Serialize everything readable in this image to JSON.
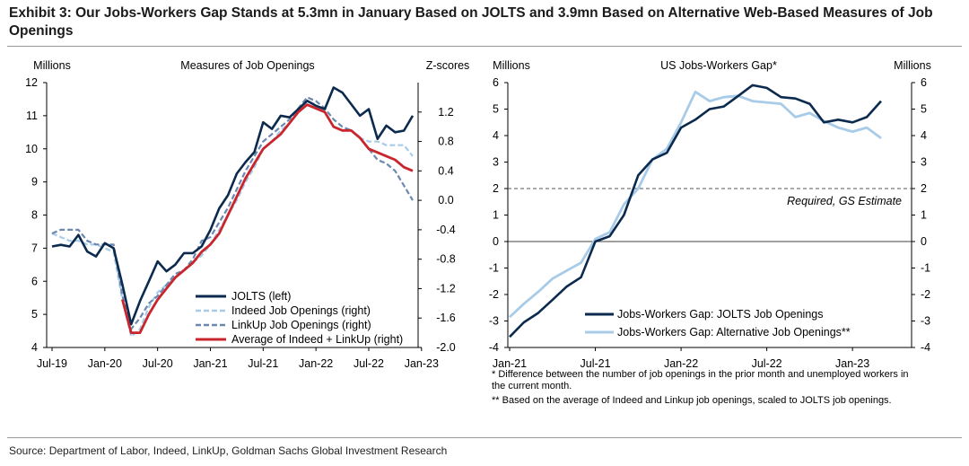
{
  "title": "Exhibit 3: Our Jobs-Workers Gap Stands at 5.3mn in January Based on JOLTS and 3.9mn Based on Alternative Web-Based Measures of Job Openings",
  "source": "Source: Department of Labor, Indeed, LinkUp, Goldman Sachs Global Investment Research",
  "notes": [
    "* Difference between the number of job openings in the prior month and unemployed workers in the current month.",
    "** Based on the average of Indeed and Linkup job openings, scaled to JOLTS job openings."
  ],
  "colors": {
    "navy": "#0b2a4e",
    "lightblue": "#a8cbe8",
    "slateblue": "#6b88b0",
    "red": "#c8262c",
    "grid": "#888888"
  },
  "chart_data": [
    {
      "type": "line",
      "title": "Measures of Job Openings",
      "ylabel_left": "Millions",
      "ylabel_right": "Z-scores",
      "ylim_left": [
        4,
        12
      ],
      "ylim_right": [
        -2.0,
        1.6
      ],
      "yticks_left": [
        "4",
        "5",
        "6",
        "7",
        "8",
        "9",
        "10",
        "11",
        "12"
      ],
      "yticks_right": [
        "-2.0",
        "-1.6",
        "-1.2",
        "-0.8",
        "-0.4",
        "0.0",
        "0.4",
        "0.8",
        "1.2"
      ],
      "xticks": [
        "Jul-19",
        "Jan-20",
        "Jul-20",
        "Jan-21",
        "Jul-21",
        "Jan-22",
        "Jul-22",
        "Jan-23"
      ],
      "x_start": "2019-07",
      "series": [
        {
          "name": "JOLTS (left)",
          "axis": "left",
          "style": "solid-navy",
          "values": [
            7.05,
            7.1,
            7.05,
            7.4,
            6.9,
            6.75,
            7.15,
            7.0,
            5.9,
            4.7,
            5.4,
            6.0,
            6.6,
            6.3,
            6.5,
            6.85,
            6.85,
            7.05,
            7.55,
            8.2,
            8.6,
            9.25,
            9.6,
            9.9,
            10.8,
            10.6,
            11.0,
            10.95,
            11.2,
            11.45,
            11.3,
            11.2,
            11.85,
            11.7,
            11.35,
            11.0,
            11.2,
            10.3,
            10.7,
            10.5,
            10.55,
            11.0
          ]
        },
        {
          "name": "Indeed Job Openings (right)",
          "axis": "right",
          "style": "dashed-lightblue",
          "values": [
            -0.45,
            -0.5,
            -0.55,
            -0.55,
            -0.6,
            -0.6,
            -0.65,
            -0.7,
            -1.35,
            -1.85,
            -1.75,
            -1.45,
            -1.25,
            -1.15,
            -1.05,
            -0.95,
            -0.85,
            -0.75,
            -0.6,
            -0.4,
            -0.2,
            0.0,
            0.25,
            0.45,
            0.7,
            0.8,
            0.95,
            1.05,
            1.2,
            1.35,
            1.3,
            1.2,
            1.0,
            0.95,
            0.95,
            0.85,
            0.8,
            0.8,
            0.75,
            0.75,
            0.75,
            0.6
          ]
        },
        {
          "name": "LinkUp Job Openings (right)",
          "axis": "right",
          "style": "dashed-slateblue",
          "values": [
            -0.45,
            -0.4,
            -0.4,
            -0.4,
            -0.55,
            -0.6,
            -0.6,
            -0.6,
            -1.3,
            -1.75,
            -1.6,
            -1.4,
            -1.3,
            -1.15,
            -1.0,
            -0.95,
            -0.8,
            -0.55,
            -0.5,
            -0.3,
            -0.1,
            0.15,
            0.4,
            0.6,
            0.8,
            0.9,
            1.0,
            1.1,
            1.25,
            1.4,
            1.35,
            1.25,
            1.1,
            1.0,
            0.95,
            0.85,
            0.7,
            0.55,
            0.5,
            0.4,
            0.2,
            0.0
          ]
        },
        {
          "name": "Average of Indeed + LinkUp (right)",
          "axis": "right",
          "style": "solid-red",
          "values": [
            null,
            null,
            null,
            null,
            null,
            null,
            null,
            null,
            -1.35,
            -1.8,
            -1.8,
            -1.55,
            -1.35,
            -1.2,
            -1.05,
            -0.95,
            -0.85,
            -0.7,
            -0.6,
            -0.45,
            -0.2,
            0.05,
            0.3,
            0.5,
            0.7,
            0.8,
            0.9,
            1.05,
            1.2,
            1.3,
            1.25,
            1.2,
            1.0,
            0.95,
            0.95,
            0.85,
            0.7,
            0.65,
            0.6,
            0.55,
            0.45,
            0.4
          ]
        }
      ]
    },
    {
      "type": "line",
      "title": "US Jobs-Workers Gap*",
      "ylabel_left": "Millions",
      "ylabel_right": "Millions",
      "ylim": [
        -4,
        6
      ],
      "yticks": [
        "-4",
        "-3",
        "-2",
        "-1",
        "0",
        "1",
        "2",
        "3",
        "4",
        "5",
        "6"
      ],
      "xticks": [
        "Jan-21",
        "Jul-21",
        "Jan-22",
        "Jul-22",
        "Jan-23"
      ],
      "x_start": "2021-01",
      "hline": {
        "y": 2,
        "label": "Required, GS Estimate",
        "style": "dashed"
      },
      "series": [
        {
          "name": "Jobs-Workers Gap: JOLTS Job Openings",
          "style": "solid-navy",
          "values": [
            -3.6,
            -3.05,
            -2.7,
            -2.2,
            -1.7,
            -1.35,
            0.0,
            0.2,
            1.0,
            2.5,
            3.1,
            3.35,
            4.3,
            4.6,
            5.0,
            5.1,
            5.5,
            5.9,
            5.8,
            5.45,
            5.4,
            5.2,
            4.5,
            4.6,
            4.5,
            4.7,
            5.3
          ]
        },
        {
          "name": "Jobs-Workers Gap: Alternative Job Openings**",
          "style": "solid-lightblue",
          "values": [
            -2.85,
            -2.35,
            -1.9,
            -1.4,
            -1.1,
            -0.8,
            0.1,
            0.35,
            1.4,
            2.0,
            3.1,
            3.5,
            4.5,
            5.65,
            5.3,
            5.45,
            5.5,
            5.3,
            5.25,
            5.2,
            4.7,
            4.85,
            4.55,
            4.3,
            4.15,
            4.3,
            3.9
          ]
        }
      ]
    }
  ]
}
